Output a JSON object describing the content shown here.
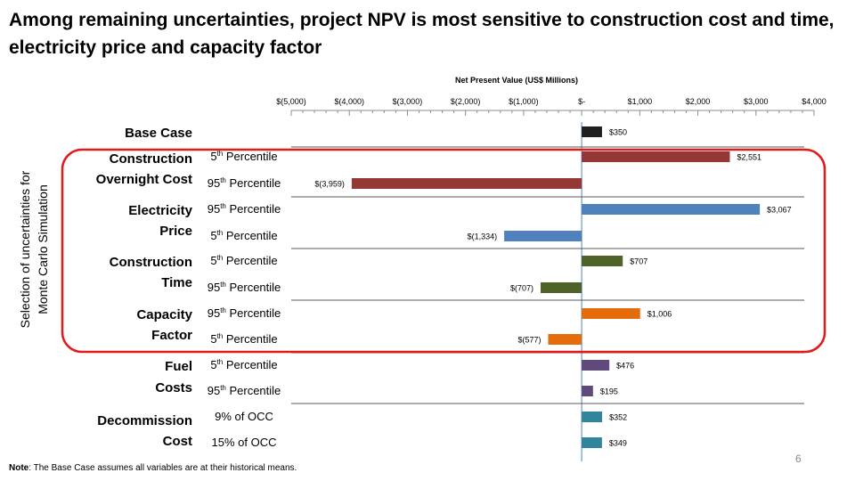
{
  "slide": {
    "title": "Among remaining uncertainties, project NPV is most sensitive to construction cost and time, electricity price and capacity factor",
    "vertical_label": "Selection of uncertainties for Monte Carlo Simulation",
    "footnote_bold": "Note",
    "footnote_text": ": The Base Case assumes all variables are at their historical means.",
    "page_number": "6",
    "highlight_color": "#e31a1c"
  },
  "chart_data": {
    "type": "bar",
    "orientation": "horizontal",
    "title": "Net Present Value (US$ Millions)",
    "xlim": [
      -5000,
      4000
    ],
    "x_ticks": [
      -5000,
      -4000,
      -3000,
      -2000,
      -1000,
      0,
      1000,
      2000,
      3000,
      4000
    ],
    "x_tick_labels": [
      "$(5,000)",
      "$(4,000)",
      "$(3,000)",
      "$(2,000)",
      "$(1,000)",
      "$-",
      "$1,000",
      "$2,000",
      "$3,000",
      "$4,000"
    ],
    "groups": [
      {
        "label": "Base Case",
        "bars": [
          {
            "case": "",
            "value": 350,
            "label": "$350",
            "color": "#1f1f1f"
          }
        ]
      },
      {
        "label": "Construction Overnight Cost",
        "bars": [
          {
            "case": "5th Percentile",
            "value": 2551,
            "label": "$2,551",
            "color": "#953735"
          },
          {
            "case": "95th Percentile",
            "value": -3959,
            "label": "$(3,959)",
            "color": "#953735"
          }
        ]
      },
      {
        "label": "Electricity Price",
        "bars": [
          {
            "case": "95th Percentile",
            "value": 3067,
            "label": "$3,067",
            "color": "#4f81bd"
          },
          {
            "case": "5th Percentile",
            "value": -1334,
            "label": "$(1,334)",
            "color": "#4f81bd"
          }
        ]
      },
      {
        "label": "Construction Time",
        "bars": [
          {
            "case": "5th Percentile",
            "value": 707,
            "label": "$707",
            "color": "#4f6228"
          },
          {
            "case": "95th Percentile",
            "value": -707,
            "label": "$(707)",
            "color": "#4f6228"
          }
        ]
      },
      {
        "label": "Capacity Factor",
        "bars": [
          {
            "case": "95th Percentile",
            "value": 1006,
            "label": "$1,006",
            "color": "#e46c0a"
          },
          {
            "case": "5th Percentile",
            "value": -577,
            "label": "$(577)",
            "color": "#e46c0a"
          }
        ]
      },
      {
        "label": "Fuel Costs",
        "bars": [
          {
            "case": "5th Percentile",
            "value": 476,
            "label": "$476",
            "color": "#604a7b"
          },
          {
            "case": "95th Percentile",
            "value": 195,
            "label": "$195",
            "color": "#604a7b"
          }
        ]
      },
      {
        "label": "Decommission Cost",
        "bars": [
          {
            "case": "9% of OCC",
            "value": 352,
            "label": "$352",
            "color": "#31849b"
          },
          {
            "case": "15% of OCC",
            "value": 349,
            "label": "$349",
            "color": "#31849b"
          }
        ]
      }
    ]
  }
}
